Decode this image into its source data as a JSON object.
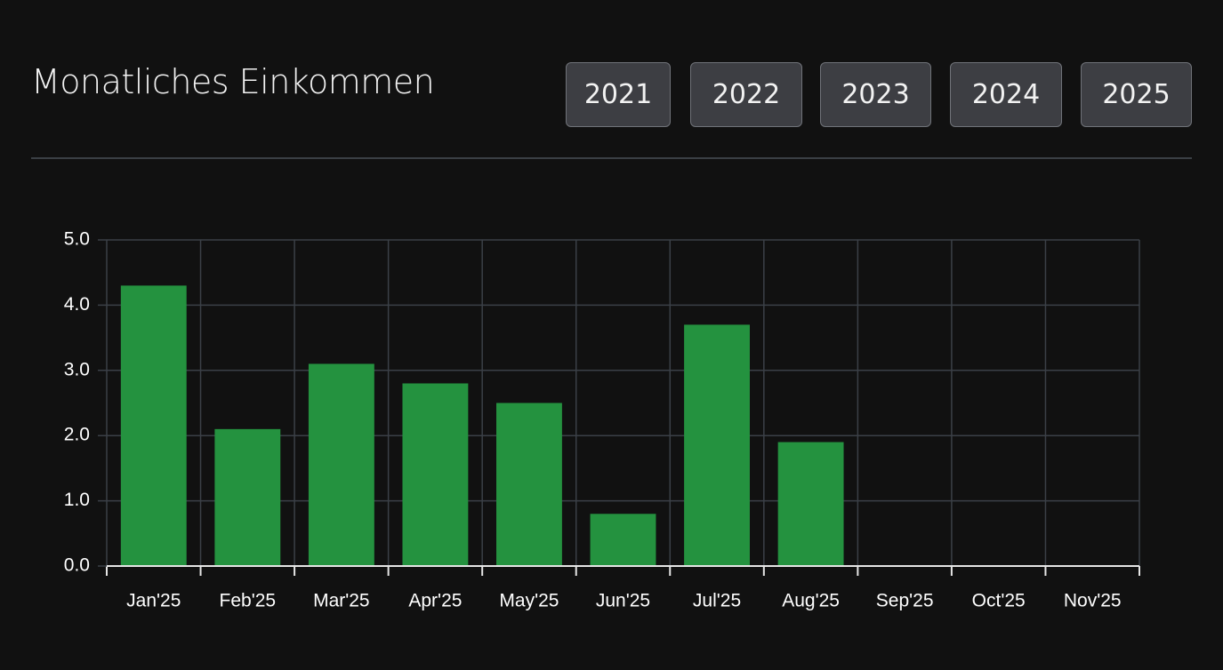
{
  "header": {
    "title": "Monatliches Einkommen",
    "year_buttons": [
      "2021",
      "2022",
      "2023",
      "2024",
      "2025"
    ]
  },
  "chart_data": {
    "type": "bar",
    "categories": [
      "Jan'25",
      "Feb'25",
      "Mar'25",
      "Apr'25",
      "May'25",
      "Jun'25",
      "Jul'25",
      "Aug'25",
      "Sep'25",
      "Oct'25",
      "Nov'25"
    ],
    "values": [
      4.3,
      2.1,
      3.1,
      2.8,
      2.5,
      0.8,
      3.7,
      1.9,
      null,
      null,
      null
    ],
    "color": "#24923f",
    "ylim": [
      0,
      5
    ],
    "yticks": [
      {
        "value": 0,
        "label": "0.0"
      },
      {
        "value": 1,
        "label": "1.0"
      },
      {
        "value": 2,
        "label": "2.0"
      },
      {
        "value": 3,
        "label": "3.0"
      },
      {
        "value": 4,
        "label": "4.0"
      },
      {
        "value": 5,
        "label": "5.0"
      }
    ],
    "grid": true
  }
}
